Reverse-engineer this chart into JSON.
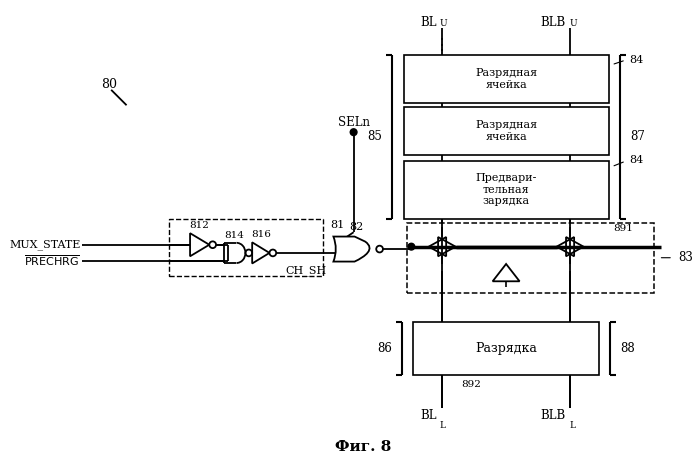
{
  "title": "Фиг. 8",
  "label_80": "80",
  "label_81": "81",
  "label_82": "82",
  "label_83": "83",
  "label_84a": "84",
  "label_84b": "84",
  "label_85": "85",
  "label_86": "86",
  "label_87": "87",
  "label_88": "88",
  "label_891": "891",
  "label_892": "892",
  "label_812": "812",
  "label_814": "814",
  "label_816": "816",
  "label_MUX_STATE": "MUX_STATE",
  "label_PRECHRG": "PRECHRG",
  "label_SELn": "SELn",
  "label_CH_SH": "CH_SH",
  "box1_text": "Разрядная\nячейка",
  "box2_text": "Разрядная\nячейка",
  "box3_text": "Предвари-\nтельная\nзарядка",
  "box4_text": "Разрядка",
  "bg_color": "#ffffff",
  "line_color": "#000000"
}
